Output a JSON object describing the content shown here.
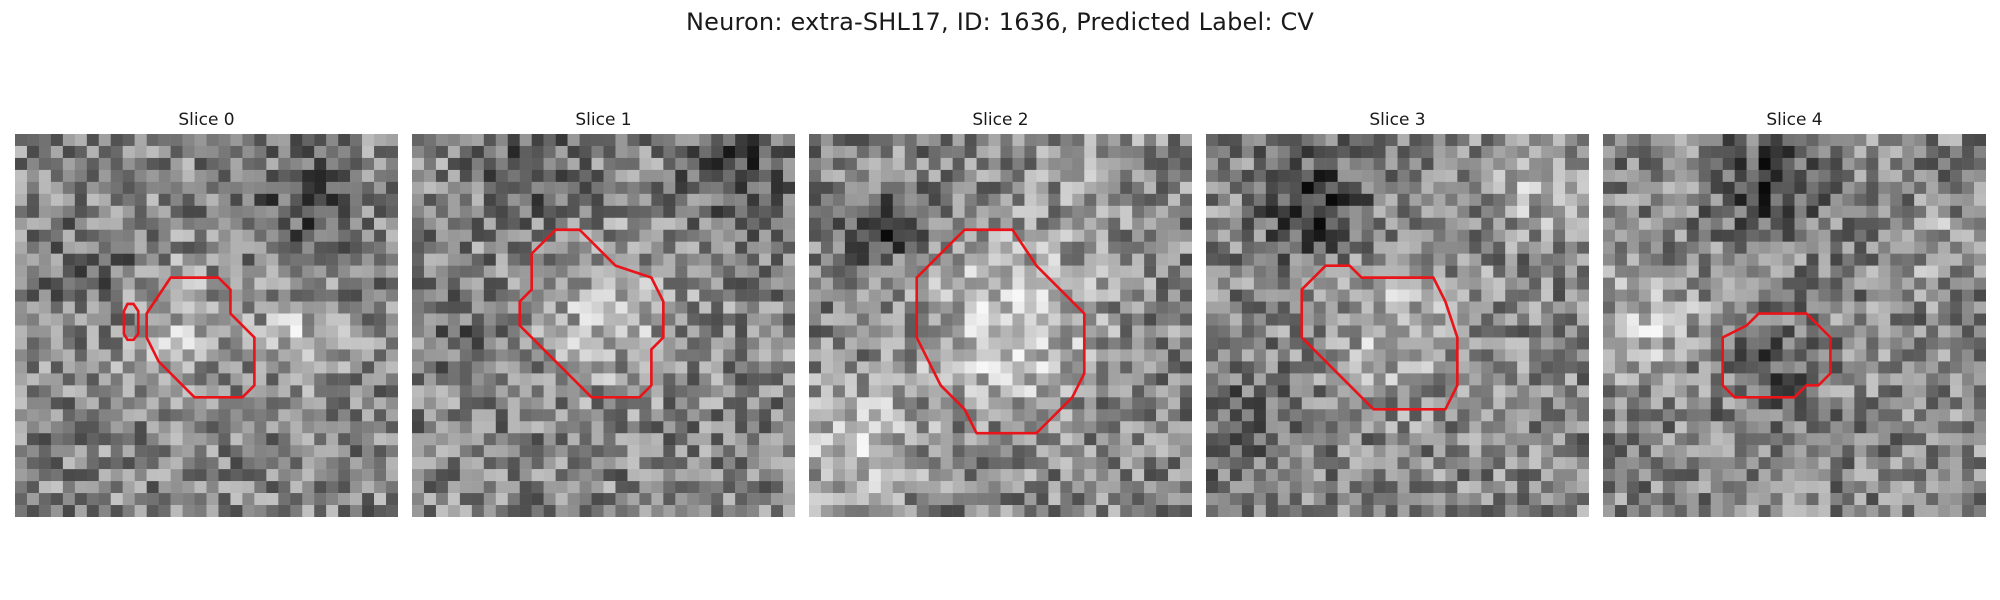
{
  "figure": {
    "title": "Neuron: extra-SHL17, ID: 1636, Predicted Label: CV"
  },
  "colors": {
    "contour": "#e8141a",
    "background": "#ffffff"
  },
  "grid": {
    "cells": 32
  },
  "slices": [
    {
      "title": "Slice 0",
      "seed": 11,
      "blobs": [
        [
          14,
          16,
          5,
          0.18
        ],
        [
          7,
          11,
          4,
          -0.12
        ],
        [
          24,
          6,
          4,
          -0.2
        ],
        [
          24,
          17,
          3,
          0.22
        ]
      ],
      "contours": [
        [
          [
            11,
            15
          ],
          [
            13,
            12
          ],
          [
            17,
            12
          ],
          [
            18,
            13
          ],
          [
            18,
            15
          ],
          [
            20,
            17
          ],
          [
            20,
            21
          ],
          [
            19,
            22
          ],
          [
            15,
            22
          ],
          [
            13,
            20
          ],
          [
            12,
            19
          ],
          [
            11,
            17
          ]
        ],
        [
          [
            9.4,
            14.2
          ],
          [
            9.9,
            14.2
          ],
          [
            10.3,
            14.8
          ],
          [
            10.3,
            16.7
          ],
          [
            9.9,
            17.2
          ],
          [
            9.4,
            17.2
          ],
          [
            9.1,
            16.7
          ],
          [
            9.1,
            14.8
          ]
        ]
      ]
    },
    {
      "title": "Slice 1",
      "seed": 23,
      "blobs": [
        [
          16,
          15,
          6,
          0.2
        ],
        [
          4,
          16,
          4,
          -0.1
        ],
        [
          27,
          3,
          4,
          -0.25
        ],
        [
          10,
          3,
          4,
          -0.2
        ]
      ],
      "contours": [
        [
          [
            10,
            10
          ],
          [
            12,
            8
          ],
          [
            14,
            8
          ],
          [
            16,
            10
          ],
          [
            17,
            11
          ],
          [
            20,
            12
          ],
          [
            21,
            14
          ],
          [
            21,
            17
          ],
          [
            20,
            18
          ],
          [
            20,
            21
          ],
          [
            19,
            22
          ],
          [
            15,
            22
          ],
          [
            13,
            20
          ],
          [
            12,
            19
          ],
          [
            11,
            18
          ],
          [
            10,
            17
          ],
          [
            9,
            16
          ],
          [
            9,
            14
          ],
          [
            10,
            13
          ]
        ]
      ]
    },
    {
      "title": "Slice 2",
      "seed": 37,
      "blobs": [
        [
          17,
          16,
          7,
          0.3
        ],
        [
          4,
          26,
          5,
          0.25
        ],
        [
          6,
          8,
          3,
          -0.3
        ],
        [
          24,
          3,
          4,
          0.1
        ]
      ],
      "contours": [
        [
          [
            9,
            12
          ],
          [
            12,
            9
          ],
          [
            13,
            8
          ],
          [
            17,
            8
          ],
          [
            19,
            11
          ],
          [
            23,
            15
          ],
          [
            23,
            20
          ],
          [
            22,
            22
          ],
          [
            21,
            23
          ],
          [
            20,
            24
          ],
          [
            19,
            25
          ],
          [
            14,
            25
          ],
          [
            13,
            23
          ],
          [
            11,
            21
          ],
          [
            10,
            19
          ],
          [
            9,
            17
          ]
        ]
      ]
    },
    {
      "title": "Slice 3",
      "seed": 53,
      "blobs": [
        [
          16,
          16,
          6,
          0.2
        ],
        [
          9,
          6,
          4,
          -0.35
        ],
        [
          27,
          4,
          4,
          0.2
        ],
        [
          3,
          24,
          4,
          -0.15
        ]
      ],
      "contours": [
        [
          [
            8,
            13
          ],
          [
            10,
            11
          ],
          [
            12,
            11
          ],
          [
            13,
            12
          ],
          [
            19,
            12
          ],
          [
            20,
            14
          ],
          [
            21,
            17
          ],
          [
            21,
            21
          ],
          [
            20,
            23
          ],
          [
            14,
            23
          ],
          [
            12,
            21
          ],
          [
            9,
            18
          ],
          [
            8,
            17
          ]
        ]
      ]
    },
    {
      "title": "Slice 4",
      "seed": 71,
      "blobs": [
        [
          14,
          19,
          4,
          -0.15
        ],
        [
          14,
          4,
          4,
          -0.3
        ],
        [
          4,
          16,
          4,
          0.25
        ],
        [
          28,
          9,
          3,
          0.15
        ]
      ],
      "contours": [
        [
          [
            10,
            17
          ],
          [
            12,
            16
          ],
          [
            13,
            15
          ],
          [
            17,
            15
          ],
          [
            19,
            17
          ],
          [
            19,
            20
          ],
          [
            18,
            21
          ],
          [
            17,
            21
          ],
          [
            16,
            22
          ],
          [
            11,
            22
          ],
          [
            10,
            21
          ]
        ]
      ]
    }
  ]
}
